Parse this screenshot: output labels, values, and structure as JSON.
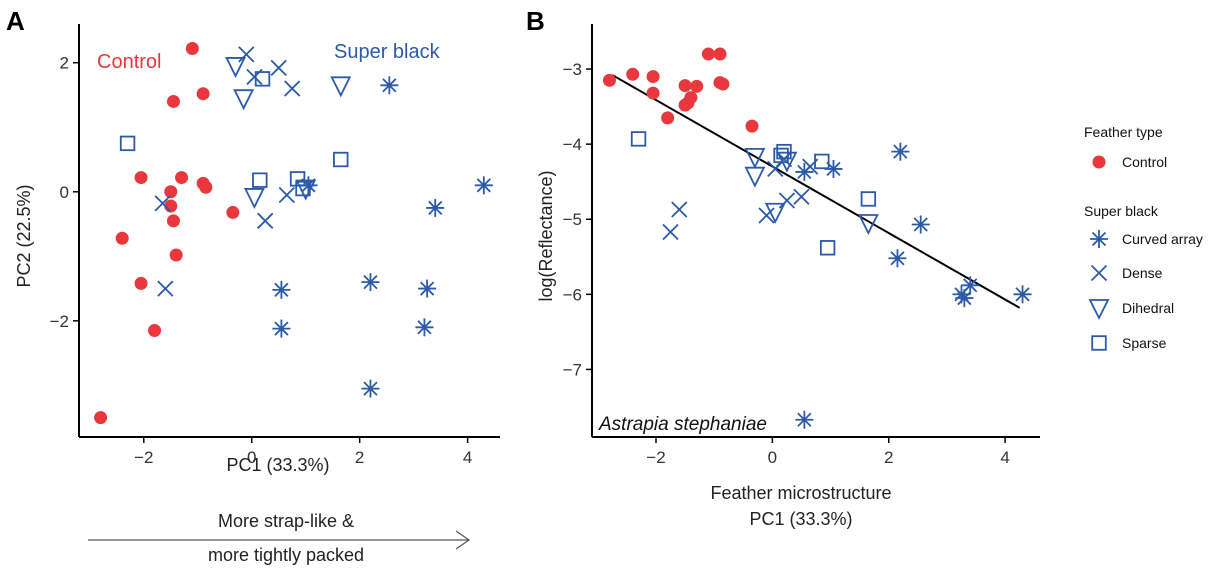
{
  "figure": {
    "panel_a_letter": "A",
    "panel_b_letter": "B",
    "arrow_caption_line1": "More strap-like &",
    "arrow_caption_line2": "more tightly packed"
  },
  "colors": {
    "control": "#e8383d",
    "super_black": "#2b5aa8",
    "axis": "#000000"
  },
  "legend": {
    "title_1": "Feather type",
    "control_label": "Control",
    "title_2": "Super black",
    "items": [
      {
        "label": "Curved array",
        "marker": "asterisk-icon"
      },
      {
        "label": "Dense",
        "marker": "cross-icon"
      },
      {
        "label": "Dihedral",
        "marker": "triangle-down-icon"
      },
      {
        "label": "Sparse",
        "marker": "square-icon"
      }
    ]
  },
  "chart_data": [
    {
      "type": "scatter",
      "panel": "A",
      "xlabel": "PC1 (33.3%)",
      "ylabel": "PC2 (22.5%)",
      "xlim": [
        -3.2,
        4.6
      ],
      "ylim": [
        -3.8,
        2.6
      ],
      "xticks": [
        -2,
        0,
        2,
        4
      ],
      "yticks": [
        -2,
        0,
        2
      ],
      "annotations": [
        {
          "text": "Control",
          "color": "#e8383d"
        },
        {
          "text": "Super black",
          "color": "#2b5aa8"
        }
      ],
      "series": [
        {
          "name": "Control",
          "marker": "circle",
          "points": [
            [
              -1.1,
              2.22
            ],
            [
              -1.45,
              1.4
            ],
            [
              -0.9,
              1.52
            ],
            [
              -2.05,
              0.22
            ],
            [
              -1.3,
              0.22
            ],
            [
              -1.5,
              0.0
            ],
            [
              -0.9,
              0.13
            ],
            [
              -0.85,
              0.07
            ],
            [
              -1.5,
              -0.22
            ],
            [
              -1.45,
              -0.45
            ],
            [
              -0.35,
              -0.32
            ],
            [
              -2.4,
              -0.72
            ],
            [
              -1.4,
              -0.98
            ],
            [
              -2.05,
              -1.42
            ],
            [
              -1.8,
              -2.15
            ],
            [
              -2.8,
              -3.5
            ]
          ]
        },
        {
          "name": "Curved array",
          "marker": "asterisk",
          "points": [
            [
              2.55,
              1.65
            ],
            [
              4.3,
              0.1
            ],
            [
              1.05,
              0.1
            ],
            [
              3.4,
              -0.25
            ],
            [
              2.2,
              -1.4
            ],
            [
              3.25,
              -1.5
            ],
            [
              0.55,
              -1.52
            ],
            [
              0.55,
              -2.12
            ],
            [
              3.2,
              -2.1
            ],
            [
              2.2,
              -3.05
            ]
          ]
        },
        {
          "name": "Dense",
          "marker": "cross",
          "points": [
            [
              -0.1,
              2.13
            ],
            [
              0.5,
              1.92
            ],
            [
              0.05,
              1.78
            ],
            [
              0.75,
              1.6
            ],
            [
              0.65,
              -0.05
            ],
            [
              -1.65,
              -0.18
            ],
            [
              0.25,
              -0.45
            ],
            [
              -1.6,
              -1.5
            ]
          ]
        },
        {
          "name": "Dihedral",
          "marker": "triangle-down",
          "points": [
            [
              -0.3,
              1.95
            ],
            [
              -0.15,
              1.45
            ],
            [
              1.65,
              1.65
            ],
            [
              0.05,
              -0.08
            ],
            [
              1.0,
              0.05
            ]
          ]
        },
        {
          "name": "Sparse",
          "marker": "square",
          "points": [
            [
              0.2,
              1.75
            ],
            [
              -2.3,
              0.75
            ],
            [
              1.65,
              0.5
            ],
            [
              0.15,
              0.18
            ],
            [
              0.85,
              0.2
            ],
            [
              0.95,
              0.05
            ]
          ]
        }
      ]
    },
    {
      "type": "scatter",
      "panel": "B",
      "xlabel_line1": "Feather microstructure",
      "xlabel_line2": "PC1 (33.3%)",
      "ylabel": "log(Reflectance)",
      "xlim": [
        -3.1,
        4.6
      ],
      "ylim": [
        -7.9,
        -2.4
      ],
      "xticks": [
        -2,
        0,
        2,
        4
      ],
      "yticks": [
        -7,
        -6,
        -5,
        -4,
        -3
      ],
      "point_label": "Astrapia stephaniae",
      "regression_line": {
        "x": [
          -2.75,
          4.25
        ],
        "y": [
          -3.08,
          -6.18
        ]
      },
      "series": [
        {
          "name": "Control",
          "marker": "circle",
          "points": [
            [
              -1.1,
              -2.8
            ],
            [
              -0.9,
              -2.8
            ],
            [
              -2.4,
              -3.07
            ],
            [
              -2.05,
              -3.1
            ],
            [
              -0.9,
              -3.18
            ],
            [
              -0.85,
              -3.2
            ],
            [
              -1.5,
              -3.22
            ],
            [
              -1.3,
              -3.23
            ],
            [
              -1.4,
              -3.38
            ],
            [
              -1.45,
              -3.45
            ],
            [
              -2.05,
              -3.32
            ],
            [
              -1.5,
              -3.48
            ],
            [
              -1.8,
              -3.65
            ],
            [
              -2.8,
              -3.15
            ],
            [
              -0.35,
              -3.76
            ]
          ]
        },
        {
          "name": "Curved array",
          "marker": "asterisk",
          "points": [
            [
              0.55,
              -7.67
            ],
            [
              2.2,
              -4.1
            ],
            [
              2.55,
              -5.07
            ],
            [
              2.15,
              -5.52
            ],
            [
              1.05,
              -4.33
            ],
            [
              0.55,
              -4.37
            ],
            [
              3.25,
              -6.0
            ],
            [
              3.3,
              -6.05
            ],
            [
              3.4,
              -5.88
            ],
            [
              4.3,
              -6.0
            ]
          ]
        },
        {
          "name": "Dense",
          "marker": "cross",
          "points": [
            [
              -1.6,
              -4.87
            ],
            [
              -1.75,
              -5.17
            ],
            [
              -0.1,
              -4.95
            ],
            [
              0.05,
              -4.33
            ],
            [
              0.25,
              -4.75
            ],
            [
              0.5,
              -4.7
            ],
            [
              0.65,
              -4.3
            ],
            [
              0.2,
              -4.2
            ]
          ]
        },
        {
          "name": "Dihedral",
          "marker": "triangle-down",
          "points": [
            [
              -0.3,
              -4.17
            ],
            [
              -0.3,
              -4.42
            ],
            [
              0.05,
              -4.9
            ],
            [
              1.65,
              -5.05
            ],
            [
              0.25,
              -4.22
            ]
          ]
        },
        {
          "name": "Sparse",
          "marker": "square",
          "points": [
            [
              -2.3,
              -3.93
            ],
            [
              0.2,
              -4.1
            ],
            [
              0.15,
              -4.15
            ],
            [
              0.85,
              -4.23
            ],
            [
              1.65,
              -4.73
            ],
            [
              0.95,
              -5.38
            ]
          ]
        }
      ]
    }
  ]
}
